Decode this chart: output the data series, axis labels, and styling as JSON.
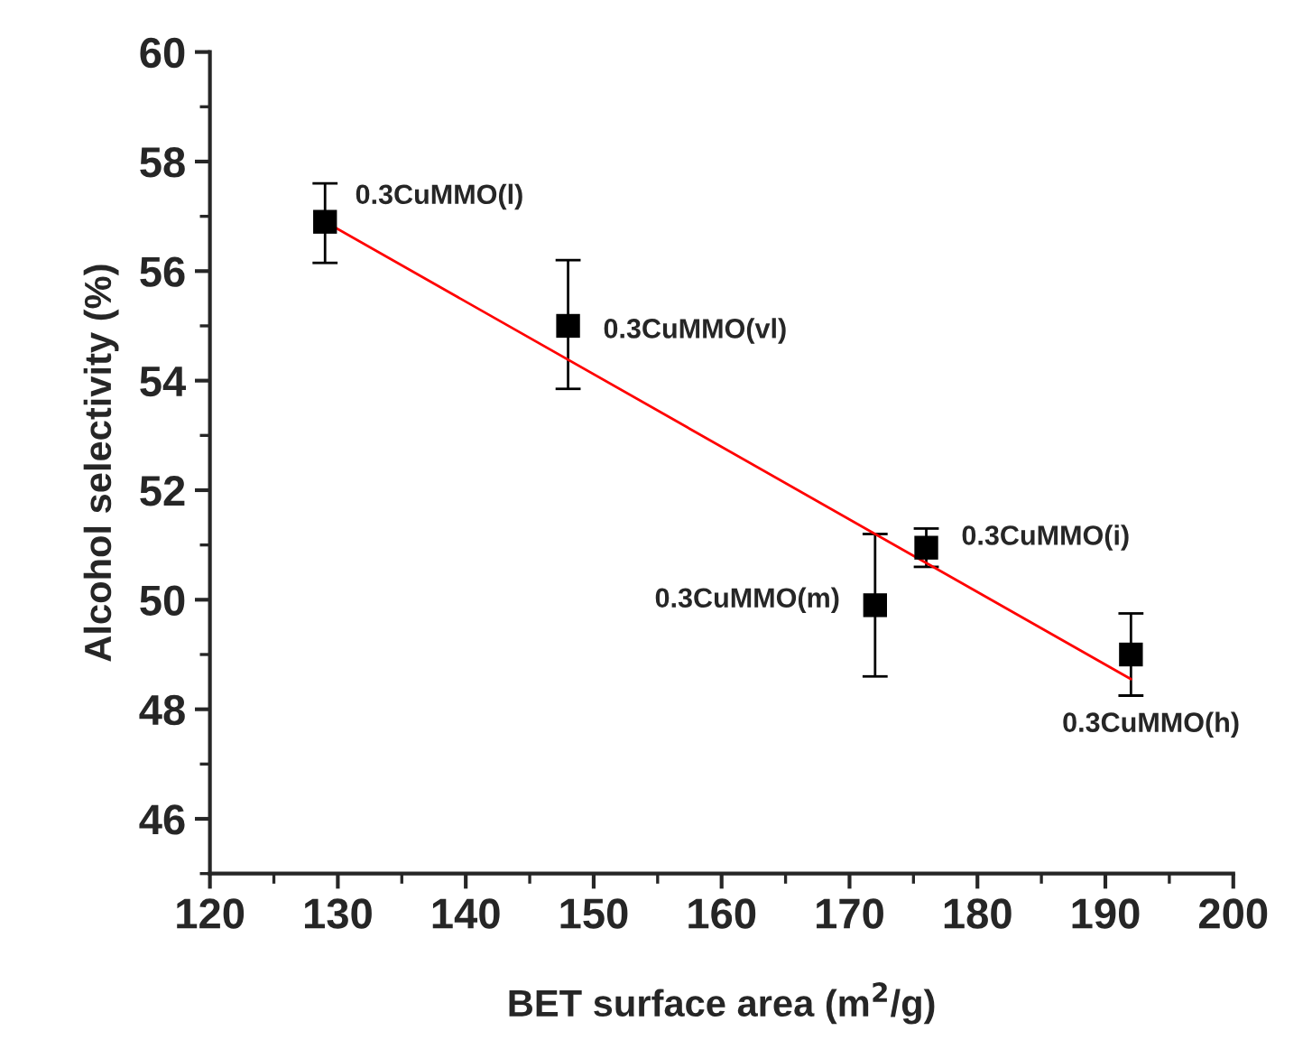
{
  "chart_data": {
    "type": "scatter",
    "xlabel": "BET surface area (m$^{2}$/g)",
    "ylabel": "Alcohol selectivity (%)",
    "xlim": [
      120,
      200
    ],
    "xticks": [
      120,
      130,
      140,
      150,
      160,
      170,
      180,
      190,
      200
    ],
    "ylim": [
      45,
      60
    ],
    "yticks": [
      46,
      48,
      50,
      52,
      54,
      56,
      58,
      60
    ],
    "grid": false,
    "legend": false,
    "series": [
      {
        "marker": "square",
        "color": "#000000",
        "x": [
          129,
          148,
          172,
          176,
          192
        ],
        "values": [
          56.9,
          55.0,
          49.9,
          50.95,
          49.0
        ],
        "errors": [
          [
            56.15,
            57.6
          ],
          [
            53.85,
            56.2
          ],
          [
            48.6,
            51.2
          ],
          [
            50.6,
            51.3
          ],
          [
            48.25,
            49.75
          ]
        ]
      },
      {
        "type": "line",
        "color": "#ff0000",
        "x": [
          129,
          192
        ],
        "values": [
          56.9,
          48.55
        ],
        "line_style": "solid",
        "marker": "none"
      }
    ],
    "annotations": [
      {
        "text": "0.3CuMMO(l)",
        "x": 129,
        "y": 56.9
      },
      {
        "text": "0.3CuMMO(vl)",
        "x": 148,
        "y": 55.0
      },
      {
        "text": "0.3CuMMO(m)",
        "x": 172,
        "y": 49.9
      },
      {
        "text": "0.3CuMMO(i)",
        "x": 176,
        "y": 50.95
      },
      {
        "text": "0.3CuMMO(h)",
        "x": 192,
        "y": 49.0
      }
    ]
  }
}
